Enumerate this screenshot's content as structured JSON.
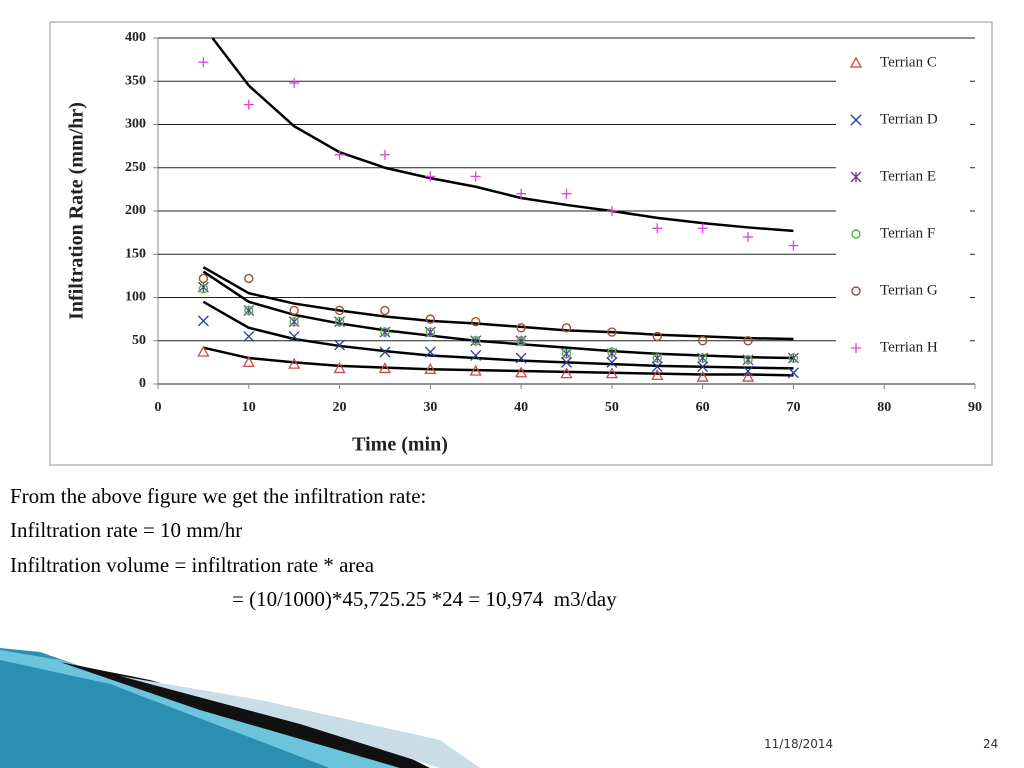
{
  "chart_data": {
    "type": "scatter",
    "x_label": "Time (min)",
    "y_label": "Infiltration Rate (mm/hr)",
    "x": [
      5,
      10,
      15,
      20,
      25,
      30,
      35,
      40,
      45,
      50,
      55,
      60,
      65,
      70
    ],
    "series": [
      {
        "name": "Terrian C",
        "color": "#d04848",
        "marker": "triangle",
        "values": [
          37,
          25,
          23,
          18,
          18,
          17,
          15,
          13,
          12,
          12,
          10,
          8,
          8,
          null
        ]
      },
      {
        "name": "Terrian D",
        "color": "#283c96",
        "marker": "cross",
        "values": [
          73,
          55,
          55,
          45,
          37,
          37,
          33,
          30,
          25,
          25,
          20,
          20,
          15,
          13
        ]
      },
      {
        "name": "Terrian E",
        "color": "#70309a",
        "marker": "asterisk",
        "values": [
          112,
          85,
          72,
          72,
          60,
          60,
          50,
          50,
          35,
          35,
          30,
          30,
          28,
          30
        ]
      },
      {
        "name": "Terrian F",
        "color": "#3cc040",
        "marker": "circle",
        "values": [
          110,
          85,
          72,
          72,
          60,
          60,
          50,
          50,
          35,
          37,
          30,
          30,
          28,
          30
        ]
      },
      {
        "name": "Terrian G",
        "color": "#a05030",
        "marker": "circle",
        "values": [
          122,
          122,
          85,
          85,
          85,
          75,
          72,
          65,
          65,
          60,
          55,
          50,
          50,
          null
        ]
      },
      {
        "name": "Terrian H",
        "color": "#e040e0",
        "marker": "plus",
        "values": [
          372,
          323,
          348,
          265,
          265,
          240,
          240,
          220,
          220,
          200,
          180,
          180,
          170,
          160
        ]
      }
    ],
    "curves": [
      {
        "color": "#000000",
        "x": [
          6,
          10,
          15,
          20,
          25,
          30,
          35,
          40,
          45,
          50,
          55,
          60,
          65,
          70
        ],
        "values": [
          400,
          345,
          298,
          268,
          250,
          238,
          228,
          215,
          207,
          200,
          192,
          186,
          181,
          177
        ]
      },
      {
        "color": "#000000",
        "x": [
          5,
          10,
          15,
          20,
          25,
          30,
          35,
          40,
          45,
          50,
          55,
          60,
          65,
          70
        ],
        "values": [
          135,
          105,
          93,
          85,
          78,
          73,
          70,
          66,
          62,
          60,
          57,
          55,
          53,
          52
        ]
      },
      {
        "color": "#000000",
        "x": [
          5,
          10,
          15,
          20,
          25,
          30,
          35,
          40,
          45,
          50,
          55,
          60,
          65,
          70
        ],
        "values": [
          130,
          95,
          80,
          70,
          62,
          56,
          50,
          46,
          42,
          38,
          35,
          33,
          31,
          30
        ]
      },
      {
        "color": "#000000",
        "x": [
          5,
          10,
          15,
          20,
          25,
          30,
          35,
          40,
          45,
          50,
          55,
          60,
          65,
          70
        ],
        "values": [
          95,
          65,
          52,
          44,
          38,
          33,
          30,
          27,
          25,
          23,
          21,
          20,
          19,
          18
        ]
      },
      {
        "color": "#000000",
        "x": [
          5,
          10,
          15,
          20,
          25,
          30,
          35,
          40,
          45,
          50,
          55,
          60,
          65,
          70
        ],
        "values": [
          42,
          30,
          25,
          21,
          19,
          17,
          16,
          15,
          14,
          13,
          12,
          11,
          11,
          10
        ]
      }
    ],
    "xlim": [
      0,
      90
    ],
    "xticks": [
      0,
      10,
      20,
      30,
      40,
      50,
      60,
      70,
      80,
      90
    ],
    "ylim": [
      0,
      400
    ],
    "yticks": [
      0,
      50,
      100,
      150,
      200,
      250,
      300,
      350,
      400
    ],
    "grid": "y",
    "legend": "right"
  },
  "body": {
    "lines": [
      "From the above figure we get the infiltration rate:",
      "Infiltration rate = 10 mm/hr",
      "Infiltration volume = infiltration rate * area",
      "= (10/1000)*45,725.25 *24 = 10,974  m3/day"
    ]
  },
  "footer": {
    "date": "11/18/2014",
    "page": "24"
  }
}
